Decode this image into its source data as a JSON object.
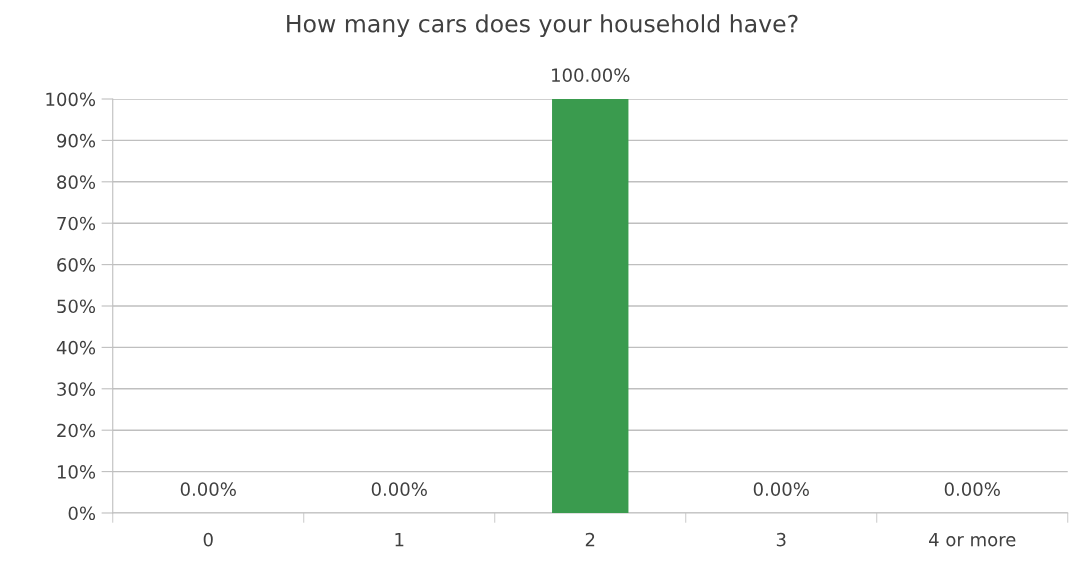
{
  "chart_data": {
    "type": "bar",
    "title": "How many cars does your household have?",
    "categories": [
      "0",
      "1",
      "2",
      "3",
      "4 or more"
    ],
    "values": [
      0,
      0,
      100,
      0,
      0
    ],
    "color": "#3a9b4e",
    "value_labels": [
      "0.00%",
      "0.00%",
      "100.00%",
      "0.00%",
      "0.00%"
    ],
    "ylim": [
      0,
      100
    ],
    "yticks": [
      {
        "value": 0,
        "label": "0%"
      },
      {
        "value": 10,
        "label": "10%"
      },
      {
        "value": 20,
        "label": "20%"
      },
      {
        "value": 30,
        "label": "30%"
      },
      {
        "value": 40,
        "label": "40%"
      },
      {
        "value": 50,
        "label": "50%"
      },
      {
        "value": 60,
        "label": "60%"
      },
      {
        "value": 70,
        "label": "70%"
      },
      {
        "value": 80,
        "label": "80%"
      },
      {
        "value": 90,
        "label": "90%"
      },
      {
        "value": 100,
        "label": "100%"
      }
    ],
    "grid": "y"
  }
}
